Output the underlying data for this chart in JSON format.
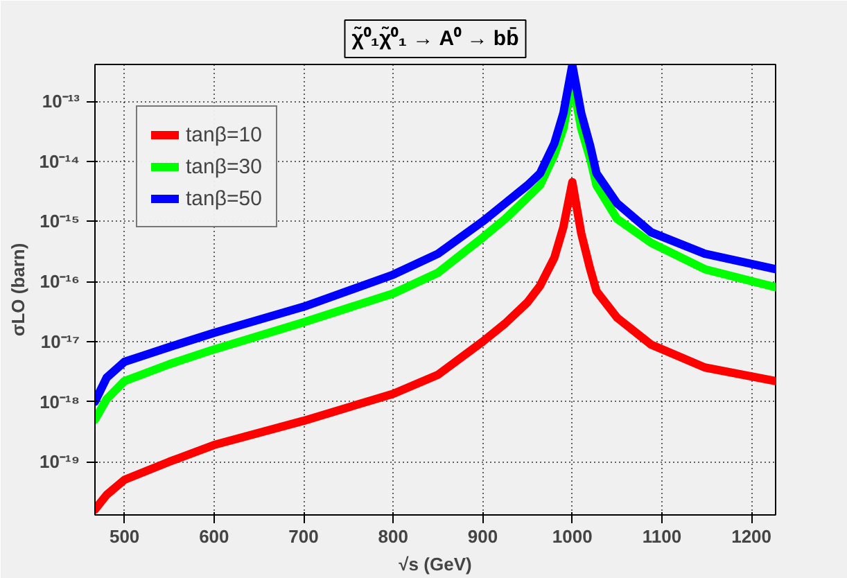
{
  "chart_data": {
    "type": "line",
    "title": "χ̃⁰₁χ̃⁰₁ → A⁰ → bb̄",
    "xlabel": "√s (GeV)",
    "ylabel": "σLO (barn)",
    "x": [
      467,
      480,
      500,
      550,
      600,
      700,
      800,
      850,
      900,
      925,
      950,
      964,
      980,
      990,
      1000,
      1010,
      1020,
      1027,
      1050,
      1088,
      1148,
      1227
    ],
    "series": [
      {
        "name": "tanβ=10",
        "color": "#ff0000",
        "values": [
          1.6e-20,
          2.8e-20,
          5e-20,
          1e-19,
          1.9e-19,
          4.8e-19,
          1.35e-18,
          2.8e-18,
          1e-17,
          2e-17,
          4.5e-17,
          8.5e-17,
          2.5e-16,
          8e-16,
          4.5e-15,
          6.3e-16,
          1.6e-16,
          6.9e-17,
          2.5e-17,
          8.9e-18,
          3.7e-18,
          2.2e-18
        ]
      },
      {
        "name": "tanβ=30",
        "color": "#00ff00",
        "values": [
          5e-19,
          1.1e-18,
          2.2e-18,
          4.2e-18,
          7.4e-18,
          2.1e-17,
          6.3e-17,
          1.4e-16,
          5.4e-16,
          1.1e-15,
          2.5e-15,
          4e-15,
          1.3e-14,
          3.5e-14,
          2.2e-13,
          3.5e-14,
          1.1e-14,
          4e-15,
          1.1e-15,
          4.4e-16,
          1.6e-16,
          8e-17
        ]
      },
      {
        "name": "tanβ=50",
        "color": "#0000ff",
        "values": [
          1e-18,
          2.5e-18,
          4.6e-18,
          8.1e-18,
          1.4e-17,
          3.8e-17,
          1.3e-16,
          2.9e-16,
          1e-15,
          2e-15,
          4e-15,
          6.3e-15,
          2e-14,
          6.3e-14,
          4e-13,
          6.3e-14,
          1.8e-14,
          6.3e-15,
          2e-15,
          6.6e-16,
          2.9e-16,
          1.6e-16
        ]
      }
    ],
    "log": "y",
    "xlim": [
      467,
      1227
    ],
    "ylim": [
      1.3e-20,
      4.1e-13
    ],
    "xticks": [
      500,
      600,
      700,
      800,
      900,
      1000,
      1100,
      1200
    ],
    "yticks": [
      {
        "value": 1e-19,
        "label": "10⁻¹⁹"
      },
      {
        "value": 1e-18,
        "label": "10⁻¹⁸"
      },
      {
        "value": 1e-17,
        "label": "10⁻¹⁷"
      },
      {
        "value": 1e-16,
        "label": "10⁻¹⁶"
      },
      {
        "value": 1e-15,
        "label": "10⁻¹⁵"
      },
      {
        "value": 1e-14,
        "label": "10⁻¹⁴"
      },
      {
        "value": 1e-13,
        "label": "10⁻¹³"
      }
    ],
    "grid": true,
    "legend": "top left",
    "line_style": "solid",
    "marker": "none"
  }
}
